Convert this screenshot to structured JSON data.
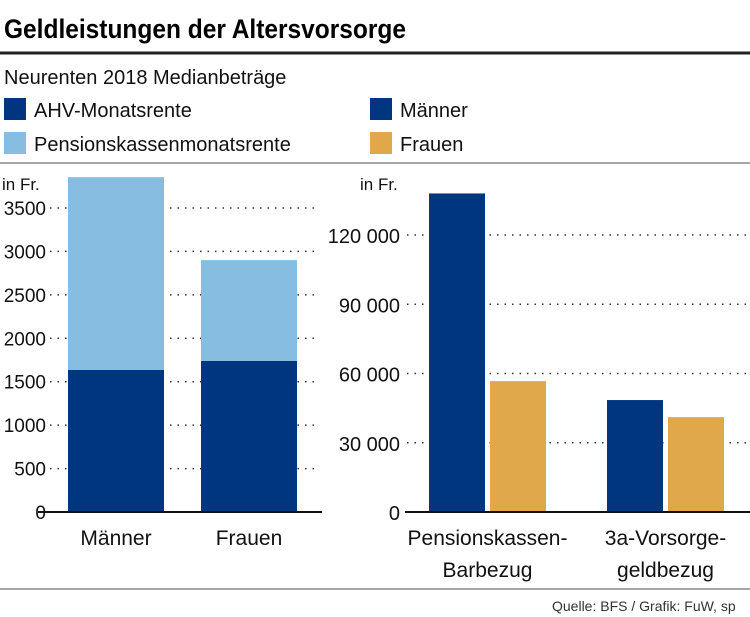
{
  "title": "Geldleistungen der Altersvorsorge",
  "subtitle": "Neurenten 2018 Medianbeträge",
  "legend": [
    {
      "label": "AHV-Monatsrente",
      "color": "#003580"
    },
    {
      "label": "Pensionskassenmonatsrente",
      "color": "#86bde0"
    },
    {
      "label": "Männer",
      "color": "#003580"
    },
    {
      "label": "Frauen",
      "color": "#e0a84a"
    }
  ],
  "source": "Quelle: BFS / Grafik: FuW, sp",
  "chart_data": [
    {
      "type": "bar",
      "stacked": true,
      "ylabel": "in Fr.",
      "ylim": [
        0,
        3900
      ],
      "yticks": [
        0,
        500,
        1000,
        1500,
        2000,
        2500,
        3000,
        3500
      ],
      "ytick_labels": [
        "0",
        "500",
        "1000",
        "1500",
        "2000",
        "2500",
        "3000",
        "3500"
      ],
      "grid": "dotted horizontal",
      "categories": [
        "Männer",
        "Frauen"
      ],
      "series": [
        {
          "name": "AHV-Monatsrente",
          "color": "#003580",
          "values": [
            1635,
            1740
          ]
        },
        {
          "name": "Pensionskassenmonatsrente",
          "color": "#86bde0",
          "values": [
            2220,
            1160
          ]
        }
      ]
    },
    {
      "type": "bar",
      "ylabel": "in Fr.",
      "ylim": [
        0,
        140000
      ],
      "yticks": [
        0,
        30000,
        60000,
        90000,
        120000
      ],
      "ytick_labels": [
        "0",
        "30 000",
        "60 000",
        "90 000",
        "120 000"
      ],
      "grid": "dotted horizontal",
      "categories": [
        "Pensionskassen-\nBarbezug",
        "3a-Vorsorge-\ngeldbezug"
      ],
      "series": [
        {
          "name": "Männer",
          "color": "#003580",
          "values": [
            138000,
            48500
          ]
        },
        {
          "name": "Frauen",
          "color": "#e0a84a",
          "values": [
            56700,
            41100
          ]
        }
      ]
    }
  ]
}
